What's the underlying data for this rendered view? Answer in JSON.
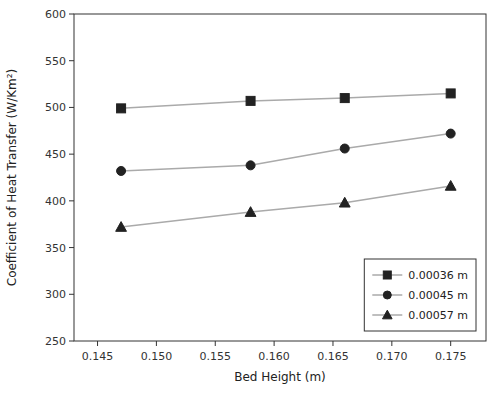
{
  "chart_data": {
    "type": "line",
    "xlabel": "Bed Height (m)",
    "ylabel": "Coefficient of Heat Transfer (W/Km²)",
    "x": [
      0.147,
      0.158,
      0.166,
      0.175
    ],
    "series": [
      {
        "name": "0.00036 m",
        "color": "#aaaaaa",
        "marker": "square",
        "values": [
          499,
          507,
          510,
          515
        ]
      },
      {
        "name": "0.00045 m",
        "color": "#aaaaaa",
        "marker": "circle",
        "values": [
          432,
          438,
          456,
          472
        ]
      },
      {
        "name": "0.00057 m",
        "color": "#aaaaaa",
        "marker": "triangle",
        "values": [
          372,
          388,
          398,
          416
        ]
      }
    ],
    "xlim": [
      0.143,
      0.178
    ],
    "ylim": [
      250,
      600
    ],
    "xticks": [
      0.145,
      {
        "value": 0.15,
        "label": "0.150"
      },
      0.155,
      {
        "value": 0.16,
        "label": "0.160"
      },
      0.165,
      {
        "value": 0.17,
        "label": "0.170"
      },
      0.175
    ],
    "yticks": [
      250,
      300,
      350,
      400,
      450,
      500,
      550,
      600
    ],
    "grid": false,
    "legend": "lower right"
  }
}
